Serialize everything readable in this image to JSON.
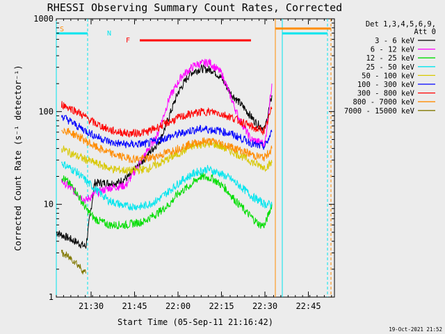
{
  "chart_data": {
    "type": "line",
    "title": "RHESSI Observing Summary Count Rates, Corrected",
    "xlabel": "Start Time (05-Sep-11 21:16:42)",
    "ylabel": "Corrected Count Rate (s⁻¹ detector⁻¹)",
    "y_scale": "log",
    "ylim": [
      1,
      1000
    ],
    "xlim_minutes": [
      21.3,
      22.9
    ],
    "x_ticks": [
      {
        "label": "21:30",
        "v": 21.5
      },
      {
        "label": "21:45",
        "v": 21.75
      },
      {
        "label": "22:00",
        "v": 22.0
      },
      {
        "label": "22:15",
        "v": 22.25
      },
      {
        "label": "22:30",
        "v": 22.5
      },
      {
        "label": "22:45",
        "v": 22.75
      }
    ],
    "y_ticks": [
      {
        "label": "1",
        "v": 1
      },
      {
        "label": "10",
        "v": 10
      },
      {
        "label": "100",
        "v": 100
      },
      {
        "label": "1000",
        "v": 1000
      }
    ],
    "legend": {
      "position": "right",
      "header": [
        "Det 1,3,4,5,6,9,",
        "Att 0"
      ],
      "entries": [
        {
          "label": "3 - 6 keV",
          "color": "#000000"
        },
        {
          "label": "6 - 12 keV",
          "color": "#ff00ff"
        },
        {
          "label": "12 - 25 keV",
          "color": "#00dd00"
        },
        {
          "label": "25 - 50 keV",
          "color": "#00e5ee"
        },
        {
          "label": "50 - 100 keV",
          "color": "#d8c800"
        },
        {
          "label": "100 - 300 keV",
          "color": "#0000ff"
        },
        {
          "label": "300 - 800 keV",
          "color": "#ff0000"
        },
        {
          "label": "800 - 7000 keV",
          "color": "#ff8c00"
        },
        {
          "label": "7000 - 15000 keV",
          "color": "#807800"
        }
      ]
    },
    "annotations": {
      "saa_label": "S",
      "night_label": "N",
      "flare_label": "F",
      "saa_color": "#ff8c00",
      "night_color": "#00e5ee",
      "flare_color": "#ff0000",
      "saa_intervals": [
        [
          22.56,
          22.88
        ]
      ],
      "night_intervals": [
        [
          21.3,
          21.48
        ],
        [
          22.6,
          22.86
        ]
      ],
      "flare_intervals": [
        [
          21.78,
          22.42
        ]
      ]
    },
    "timestamp": "19-Oct-2021 21:52",
    "series": [
      {
        "name": "3 - 6 keV",
        "color": "#000000",
        "x": [
          21.3,
          21.47,
          21.52,
          21.65,
          21.72,
          21.8,
          21.9,
          21.95,
          22.0,
          22.07,
          22.13,
          22.2,
          22.25,
          22.3,
          22.38,
          22.45,
          22.5,
          22.54
        ],
        "y": [
          5,
          3.5,
          17,
          17,
          20,
          30,
          50,
          90,
          160,
          260,
          290,
          280,
          230,
          160,
          110,
          75,
          65,
          150
        ],
        "gaps": [
          [
            21.48,
            21.52
          ]
        ]
      },
      {
        "name": "6 - 12 keV",
        "color": "#ff00ff",
        "x": [
          21.33,
          21.4,
          21.47,
          21.52,
          21.6,
          21.7,
          21.8,
          21.88,
          21.95,
          22.02,
          22.1,
          22.18,
          22.25,
          22.3,
          22.35,
          22.42,
          22.5,
          22.54
        ],
        "y": [
          18,
          14,
          11,
          13,
          15,
          16,
          32,
          55,
          140,
          240,
          320,
          340,
          260,
          150,
          85,
          50,
          45,
          200
        ],
        "gaps": [
          [
            21.48,
            21.52
          ]
        ]
      },
      {
        "name": "12 - 25 keV",
        "color": "#00dd00",
        "x": [
          21.33,
          21.4,
          21.47,
          21.52,
          21.6,
          21.7,
          21.8,
          21.88,
          21.95,
          22.0,
          22.07,
          22.13,
          22.2,
          22.27,
          22.33,
          22.4,
          22.47,
          22.5,
          22.54
        ],
        "y": [
          20,
          15,
          9,
          7,
          6,
          6,
          6.5,
          8,
          10,
          13,
          16,
          20,
          19,
          15,
          11,
          8,
          6,
          6,
          10
        ]
      },
      {
        "name": "25 - 50 keV",
        "color": "#00e5ee",
        "x": [
          21.33,
          21.42,
          21.5,
          21.6,
          21.7,
          21.8,
          21.88,
          21.95,
          22.02,
          22.1,
          22.17,
          22.23,
          22.3,
          22.37,
          22.43,
          22.5,
          22.54
        ],
        "y": [
          28,
          22,
          16,
          11,
          9.5,
          9.5,
          11,
          14,
          18,
          22,
          24,
          22,
          19,
          15,
          12,
          10,
          10
        ]
      },
      {
        "name": "50 - 100 keV",
        "color": "#d8c800",
        "x": [
          21.33,
          21.42,
          21.52,
          21.62,
          21.72,
          21.82,
          21.9,
          22.0,
          22.08,
          22.15,
          22.22,
          22.3,
          22.38,
          22.45,
          22.5,
          22.54
        ],
        "y": [
          40,
          33,
          28,
          24,
          23,
          24,
          28,
          35,
          42,
          45,
          44,
          38,
          32,
          27,
          25,
          28
        ]
      },
      {
        "name": "100 - 300 keV",
        "color": "#0000ff",
        "x": [
          21.33,
          21.42,
          21.52,
          21.62,
          21.72,
          21.82,
          21.9,
          22.0,
          22.08,
          22.15,
          22.22,
          22.3,
          22.38,
          22.45,
          22.5,
          22.54
        ],
        "y": [
          90,
          70,
          55,
          46,
          44,
          45,
          50,
          57,
          63,
          65,
          63,
          58,
          50,
          43,
          42,
          60
        ]
      },
      {
        "name": "300 - 800 keV",
        "color": "#ff0000",
        "x": [
          21.33,
          21.42,
          21.52,
          21.62,
          21.72,
          21.82,
          21.9,
          22.0,
          22.08,
          22.15,
          22.22,
          22.3,
          22.38,
          22.45,
          22.5,
          22.54
        ],
        "y": [
          120,
          100,
          75,
          62,
          58,
          60,
          70,
          85,
          95,
          100,
          98,
          88,
          75,
          65,
          62,
          110
        ]
      },
      {
        "name": "800 - 7000 keV",
        "color": "#ff8c00",
        "x": [
          21.33,
          21.42,
          21.52,
          21.62,
          21.72,
          21.82,
          21.9,
          22.0,
          22.08,
          22.15,
          22.22,
          22.3,
          22.38,
          22.45,
          22.5,
          22.54
        ],
        "y": [
          65,
          55,
          42,
          35,
          31,
          31,
          34,
          40,
          45,
          48,
          47,
          42,
          37,
          33,
          32,
          40
        ]
      },
      {
        "name": "7000 - 15000 keV",
        "color": "#807800",
        "x": [
          21.33,
          21.4,
          21.47
        ],
        "y": [
          3,
          2.5,
          1.8
        ]
      }
    ]
  }
}
